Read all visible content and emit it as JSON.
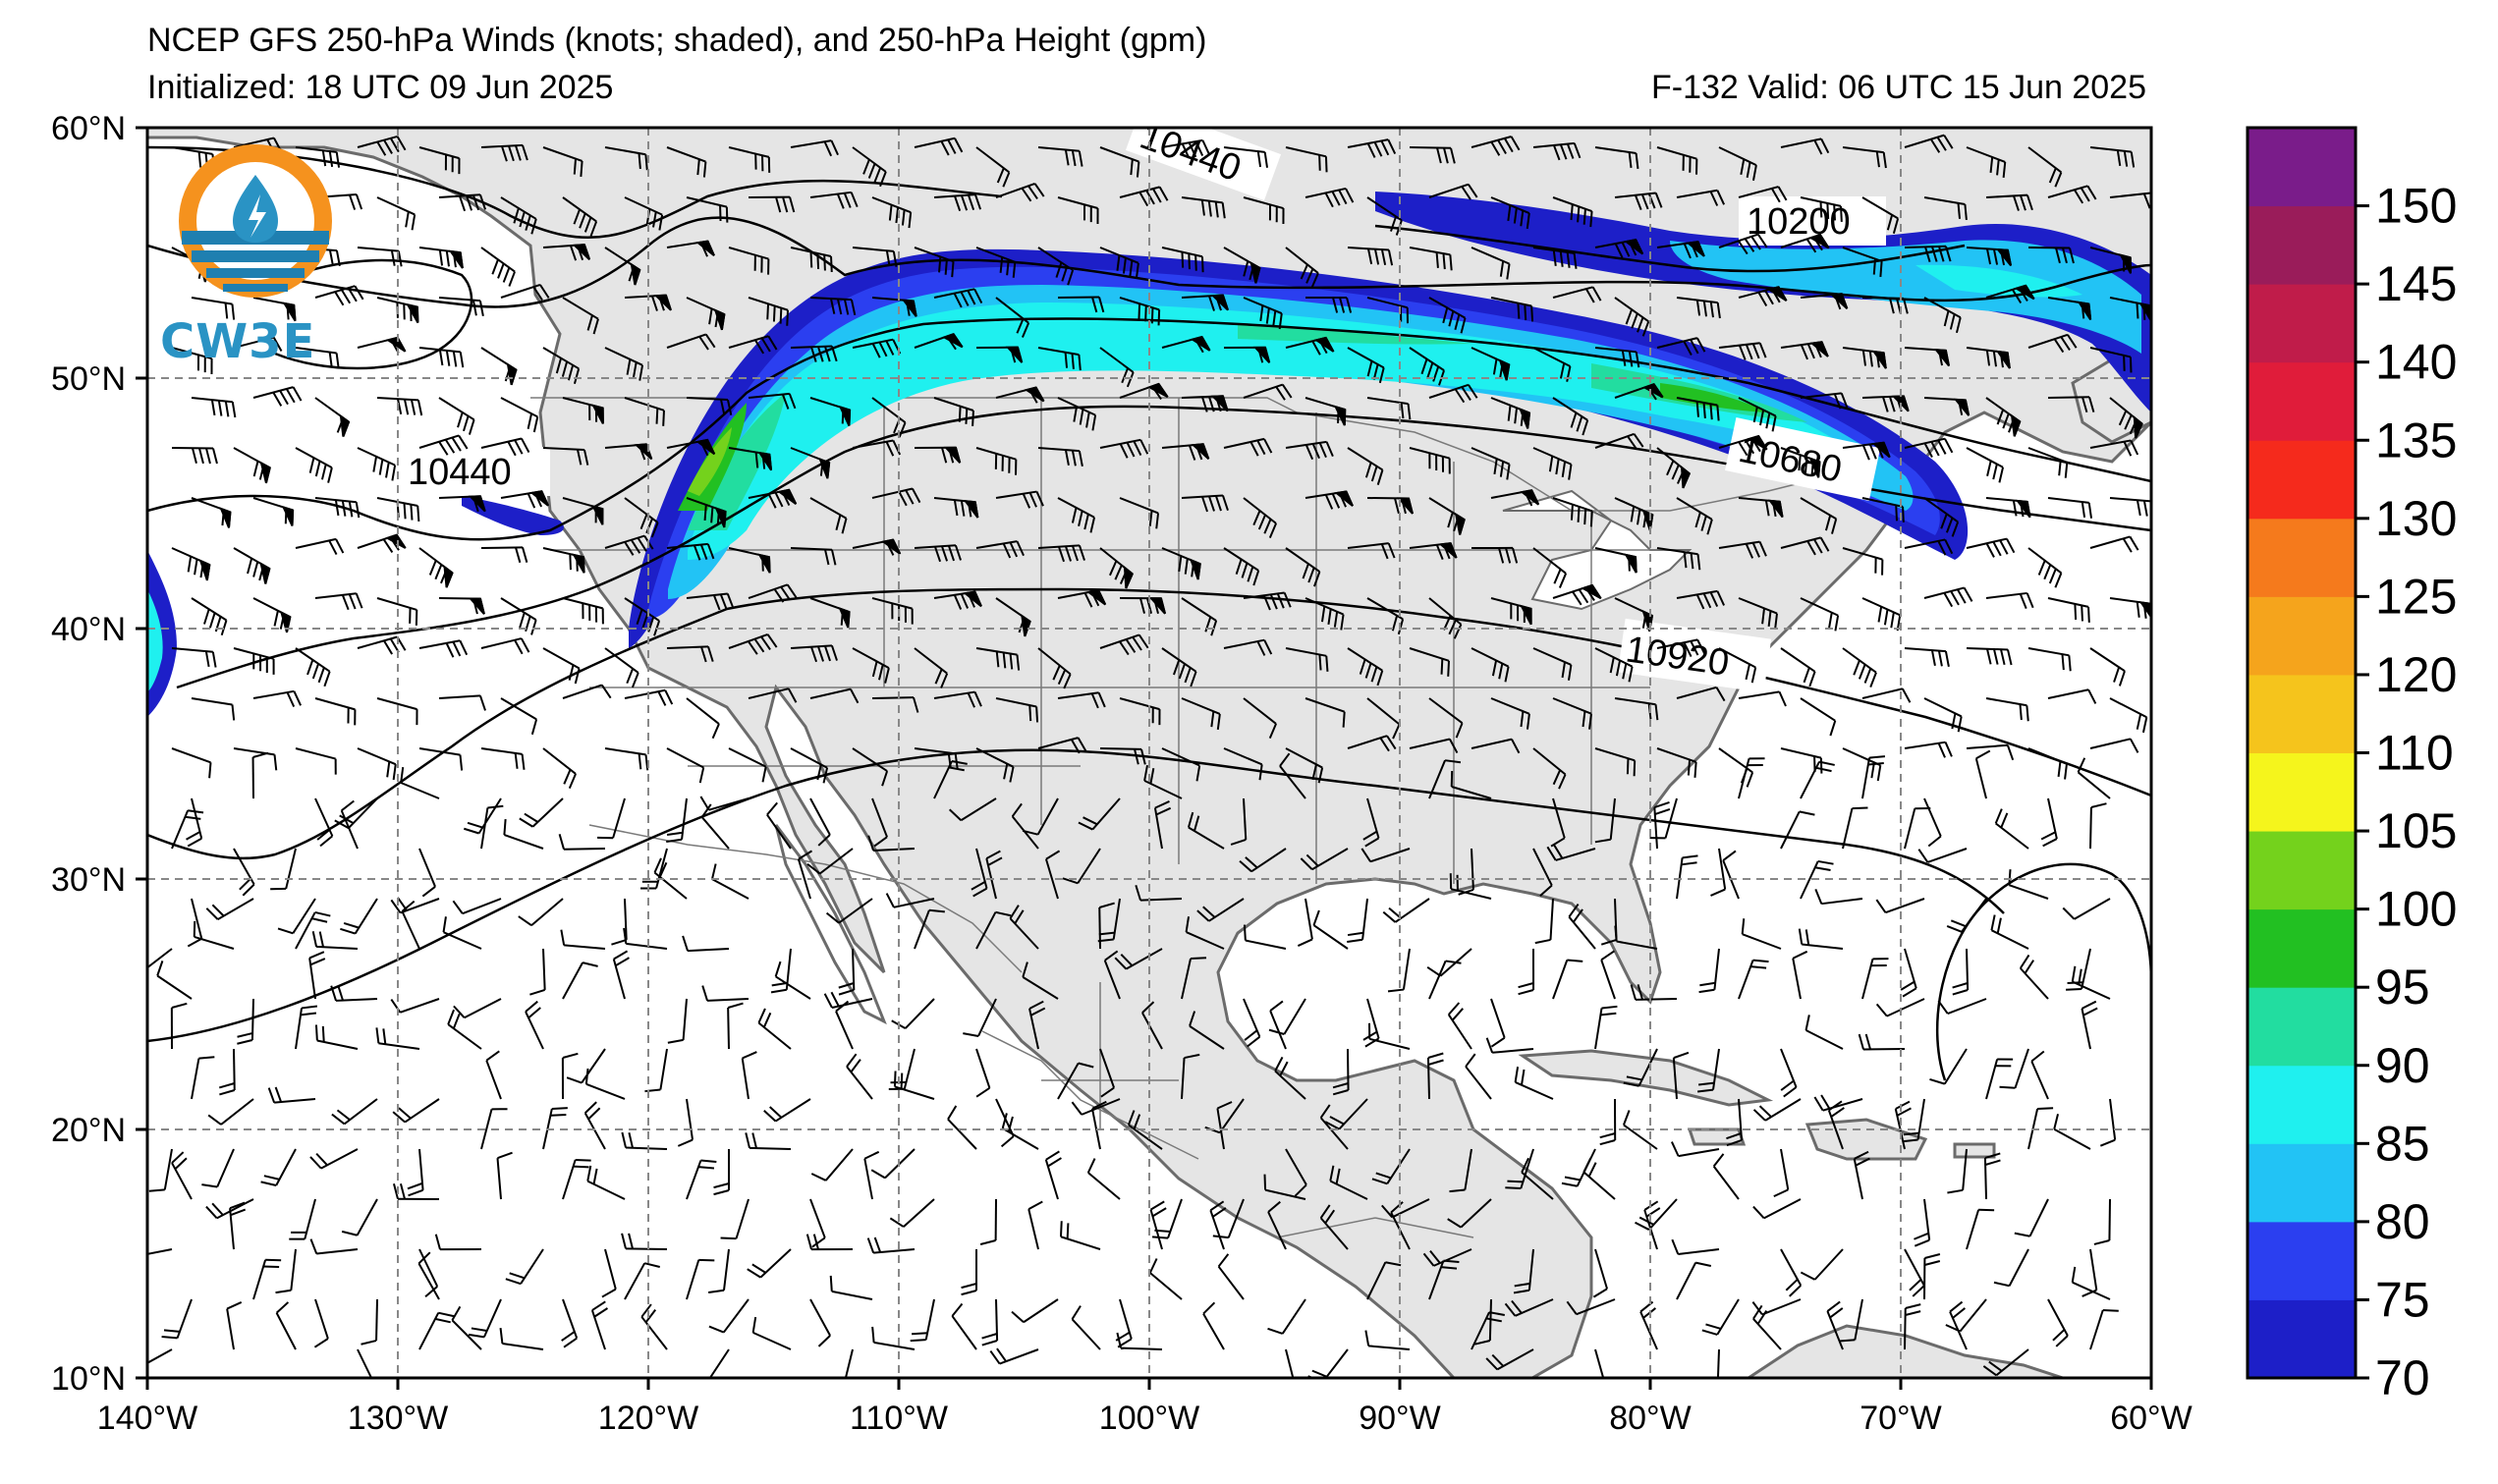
{
  "header": {
    "title": "NCEP GFS 250-hPa Winds (knots; shaded), and 250-hPa Height (gpm)",
    "initialized": "Initialized: 18 UTC 09 Jun 2025",
    "valid": "F-132  Valid: 06 UTC 15 Jun 2025"
  },
  "logo": {
    "text": "CW3E"
  },
  "axes": {
    "lon_labels": [
      "140°W",
      "130°W",
      "120°W",
      "110°W",
      "100°W",
      "90°W",
      "80°W",
      "70°W",
      "60°W"
    ],
    "lat_labels": [
      "60°N",
      "50°N",
      "40°N",
      "30°N",
      "20°N",
      "10°N"
    ]
  },
  "colorbar": {
    "ticks": [
      "70",
      "75",
      "80",
      "85",
      "90",
      "95",
      "100",
      "105",
      "110",
      "120",
      "125",
      "130",
      "135",
      "140",
      "145",
      "150"
    ],
    "colors": [
      "#1d1fc8",
      "#2b3ff0",
      "#22c3f5",
      "#1ff0ef",
      "#22dda0",
      "#22c022",
      "#74d21c",
      "#f5f51c",
      "#f5c41c",
      "#f5a41c",
      "#f57a1c",
      "#f52a1c",
      "#e01c3a",
      "#c01c4a",
      "#9a1c5a",
      "#7a1c8a"
    ]
  },
  "contour_labels": [
    "10440",
    "10200",
    "10440",
    "10680",
    "10920"
  ]
}
